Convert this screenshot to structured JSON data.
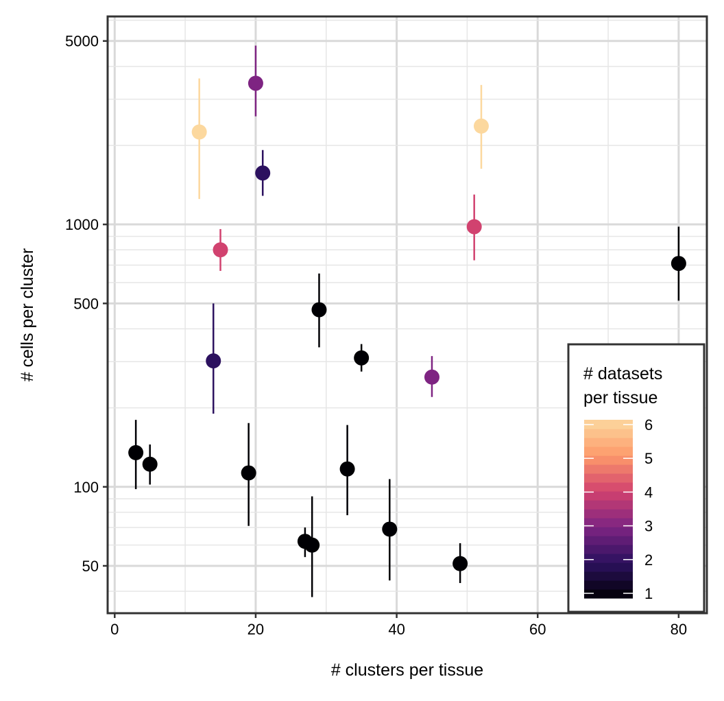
{
  "chart_data": {
    "type": "scatter",
    "title": "",
    "xlabel": "# clusters per tissue",
    "ylabel": "# cells per cluster",
    "x_scale": "linear",
    "y_scale": "log10",
    "xlim": [
      -1,
      84
    ],
    "ylim": [
      33,
      6200
    ],
    "x_ticks": [
      0,
      20,
      40,
      60,
      80
    ],
    "y_ticks": [
      50,
      100,
      500,
      1000,
      5000
    ],
    "grid": true,
    "legend": {
      "title_line1": "# datasets",
      "title_line2": "per tissue",
      "position": "bottom-right",
      "type": "colorbar",
      "range": [
        1,
        6
      ],
      "ticks": [
        "1",
        "2",
        "3",
        "4",
        "5",
        "6"
      ],
      "palette": "magma"
    },
    "points": [
      {
        "x": 3,
        "y": 135,
        "lo": 98,
        "hi": 180,
        "datasets": 1
      },
      {
        "x": 5,
        "y": 122,
        "lo": 102,
        "hi": 145,
        "datasets": 1
      },
      {
        "x": 12,
        "y": 2250,
        "lo": 1250,
        "hi": 3600,
        "datasets": 6
      },
      {
        "x": 14,
        "y": 302,
        "lo": 190,
        "hi": 500,
        "datasets": 2
      },
      {
        "x": 15,
        "y": 800,
        "lo": 665,
        "hi": 960,
        "datasets": 4
      },
      {
        "x": 19,
        "y": 113,
        "lo": 71,
        "hi": 175,
        "datasets": 1
      },
      {
        "x": 20,
        "y": 3450,
        "lo": 2580,
        "hi": 4800,
        "datasets": 3
      },
      {
        "x": 21,
        "y": 1570,
        "lo": 1285,
        "hi": 1920,
        "datasets": 2
      },
      {
        "x": 27,
        "y": 62,
        "lo": 54,
        "hi": 70,
        "datasets": 1
      },
      {
        "x": 28,
        "y": 60,
        "lo": 38,
        "hi": 92,
        "datasets": 1
      },
      {
        "x": 29,
        "y": 473,
        "lo": 340,
        "hi": 650,
        "datasets": 1
      },
      {
        "x": 33,
        "y": 117,
        "lo": 78,
        "hi": 172,
        "datasets": 1
      },
      {
        "x": 35,
        "y": 310,
        "lo": 275,
        "hi": 350,
        "datasets": 1
      },
      {
        "x": 39,
        "y": 69,
        "lo": 44,
        "hi": 107,
        "datasets": 1
      },
      {
        "x": 45,
        "y": 262,
        "lo": 220,
        "hi": 315,
        "datasets": 3
      },
      {
        "x": 49,
        "y": 51,
        "lo": 43,
        "hi": 61,
        "datasets": 1
      },
      {
        "x": 51,
        "y": 980,
        "lo": 730,
        "hi": 1300,
        "datasets": 4
      },
      {
        "x": 52,
        "y": 2370,
        "lo": 1630,
        "hi": 3400,
        "datasets": 6
      },
      {
        "x": 80,
        "y": 710,
        "lo": 512,
        "hi": 980,
        "datasets": 1
      }
    ]
  },
  "colors": {
    "panel_border": "#333333",
    "grid_major": "#d9d9d9",
    "grid_minor": "#e6e6e6",
    "magma_1": "#000004",
    "magma_2": "#2c115f",
    "magma_3": "#7e2482",
    "magma_4": "#d1426f",
    "magma_5": "#fd9a6a",
    "magma_6": "#fcd89e"
  }
}
